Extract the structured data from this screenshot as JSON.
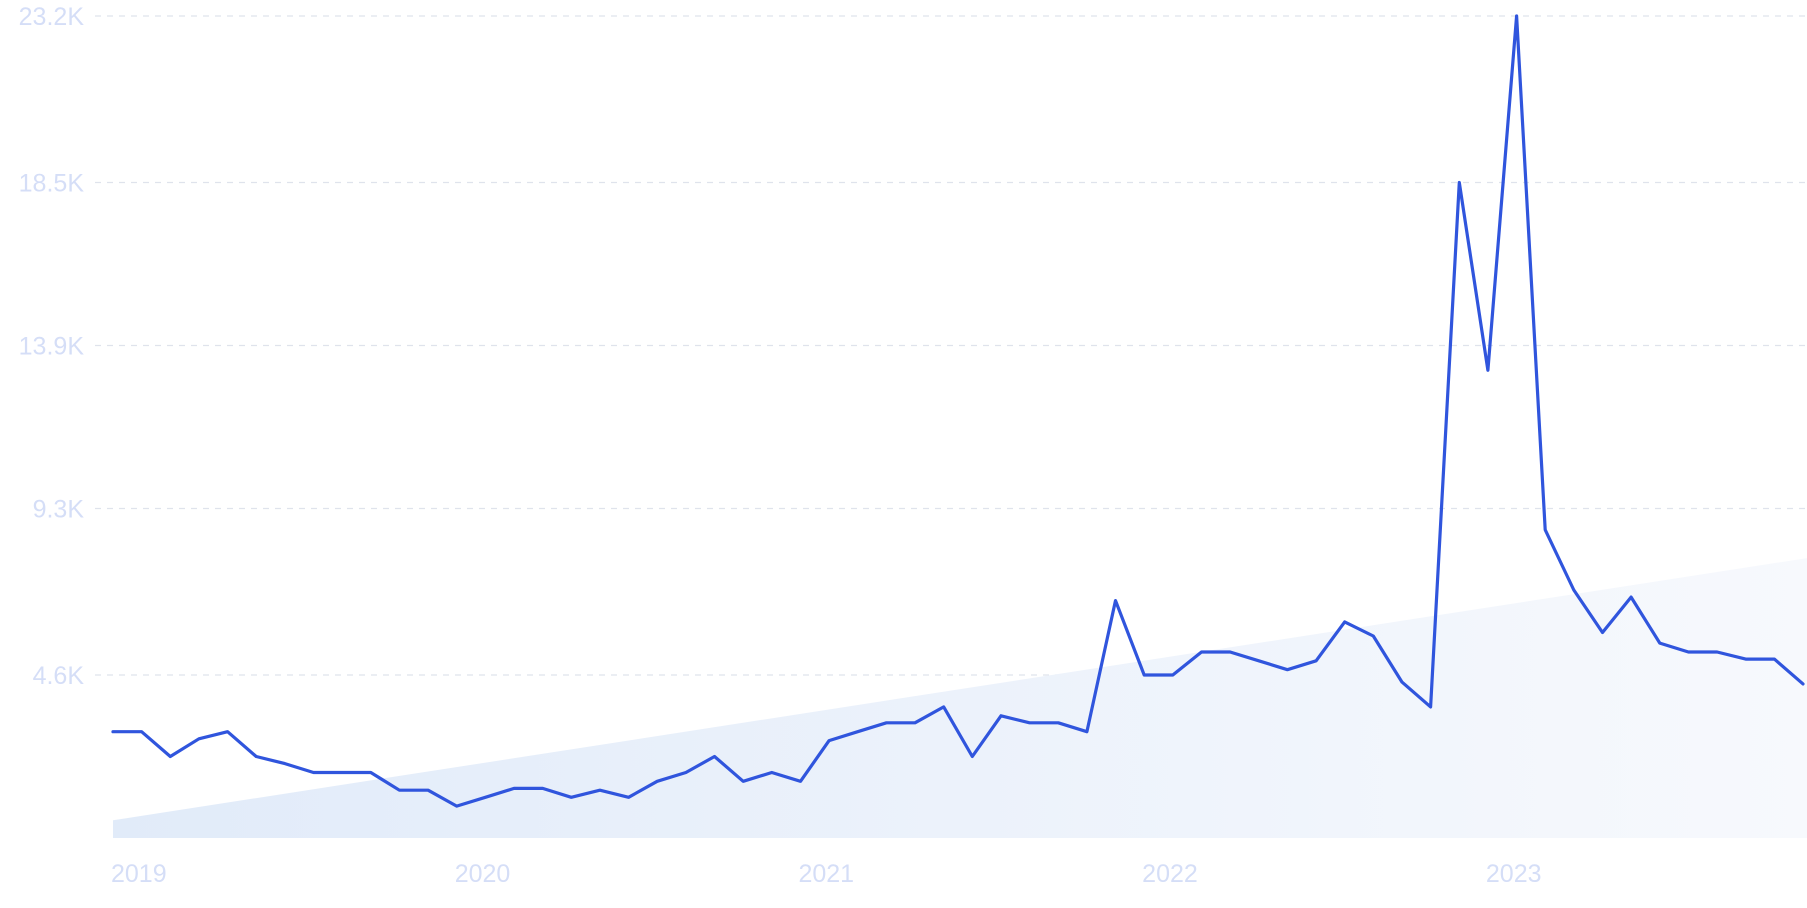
{
  "colors": {
    "line": "#3055dd",
    "trend_fill_start": "#e1ebf9",
    "trend_fill_end": "#f7f9fd",
    "tick_label": "#d5def7",
    "grid": "#dfe3ec"
  },
  "chart_data": {
    "type": "line",
    "title": "",
    "xlabel": "",
    "ylabel": "",
    "grid": true,
    "legend": "none",
    "ylim": [
      0,
      23200
    ],
    "y_ticks": [
      {
        "value": 4600,
        "label": "4.6K"
      },
      {
        "value": 9300,
        "label": "9.3K"
      },
      {
        "value": 13900,
        "label": "13.9K"
      },
      {
        "value": 18500,
        "label": "18.5K"
      },
      {
        "value": 23200,
        "label": "23.2K"
      }
    ],
    "x_ticks": [
      {
        "value": "2019-01",
        "label": "2019"
      },
      {
        "value": "2020-01",
        "label": "2020"
      },
      {
        "value": "2021-01",
        "label": "2021"
      },
      {
        "value": "2022-01",
        "label": "2022"
      },
      {
        "value": "2023-01",
        "label": "2023"
      }
    ],
    "x_range": [
      "2019-01",
      "2023-12"
    ],
    "trend": {
      "start": 500,
      "end": 7900
    },
    "series": [
      {
        "x": [
          "2019-01",
          "2019-02",
          "2019-03",
          "2019-04",
          "2019-05",
          "2019-06",
          "2019-07",
          "2019-08",
          "2019-09",
          "2019-10",
          "2019-11",
          "2019-12",
          "2020-01",
          "2020-02",
          "2020-03",
          "2020-04",
          "2020-05",
          "2020-06",
          "2020-07",
          "2020-08",
          "2020-09",
          "2020-10",
          "2020-11",
          "2020-12",
          "2021-01",
          "2021-02",
          "2021-03",
          "2021-04",
          "2021-05",
          "2021-06",
          "2021-07",
          "2021-08",
          "2021-09",
          "2021-10",
          "2021-11",
          "2021-12",
          "2022-01",
          "2022-02",
          "2022-03",
          "2022-04",
          "2022-05",
          "2022-06",
          "2022-07",
          "2022-08",
          "2022-09",
          "2022-10",
          "2022-11",
          "2022-12",
          "2023-01",
          "2023-02",
          "2023-03",
          "2023-04",
          "2023-05",
          "2023-06",
          "2023-07",
          "2023-08",
          "2023-09",
          "2023-10",
          "2023-11",
          "2023-12"
        ],
        "values": [
          3000,
          3000,
          2300,
          2800,
          3000,
          2300,
          2100,
          1850,
          1850,
          1850,
          1350,
          1350,
          900,
          1150,
          1400,
          1400,
          1150,
          1350,
          1150,
          1600,
          1850,
          2300,
          1600,
          1850,
          1600,
          2750,
          3000,
          3250,
          3250,
          3700,
          2300,
          3450,
          3250,
          3250,
          3000,
          6700,
          4600,
          4600,
          5250,
          5250,
          5000,
          4750,
          5000,
          6100,
          5700,
          4400,
          3700,
          18500,
          13200,
          23200,
          8700,
          7000,
          5800,
          6800,
          5500,
          5250,
          5250,
          5050,
          5050,
          4350
        ]
      }
    ]
  }
}
